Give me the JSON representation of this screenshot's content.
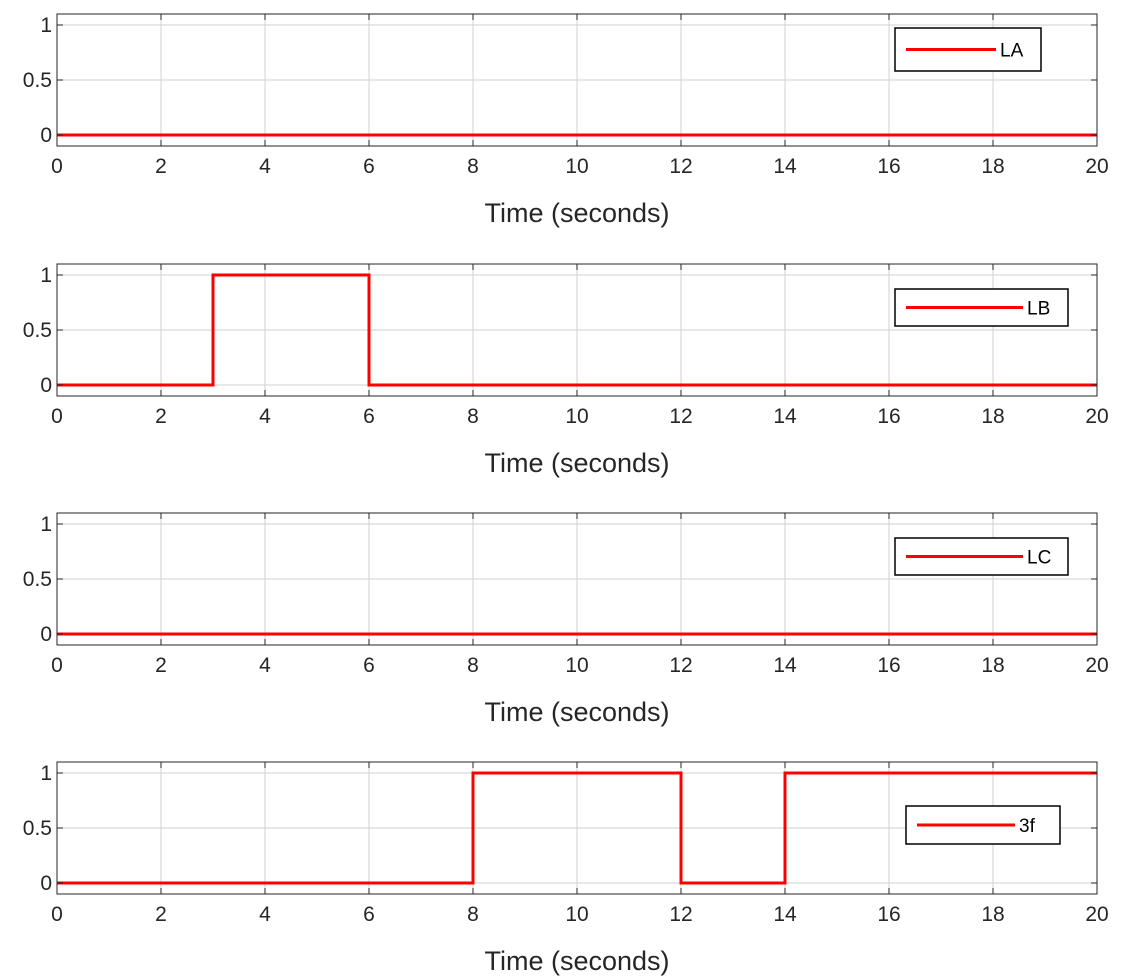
{
  "colors": {
    "series": "#ff0000",
    "axis": "#262626",
    "grid": "#d0d0d0",
    "background": "#ffffff"
  },
  "chart_data": [
    {
      "type": "line",
      "step": true,
      "xlabel": "Time (seconds)",
      "ylabel": "",
      "xlim": [
        0,
        20
      ],
      "ylim": [
        -0.1,
        1.1
      ],
      "xticks": [
        0,
        2,
        4,
        6,
        8,
        10,
        12,
        14,
        16,
        18,
        20
      ],
      "yticks": [
        0,
        0.5,
        1
      ],
      "ytick_labels": [
        "0",
        "0.5",
        "1"
      ],
      "grid": true,
      "legend_position": "top-right",
      "series": [
        {
          "name": "LA",
          "color": "#ff0000",
          "x": [
            0,
            20
          ],
          "y": [
            0,
            0
          ]
        }
      ]
    },
    {
      "type": "line",
      "step": true,
      "xlabel": "Time (seconds)",
      "ylabel": "",
      "xlim": [
        0,
        20
      ],
      "ylim": [
        -0.1,
        1.1
      ],
      "xticks": [
        0,
        2,
        4,
        6,
        8,
        10,
        12,
        14,
        16,
        18,
        20
      ],
      "yticks": [
        0,
        0.5,
        1
      ],
      "ytick_labels": [
        "0",
        "0.5",
        "1"
      ],
      "grid": true,
      "legend_position": "top-right",
      "series": [
        {
          "name": "LB",
          "color": "#ff0000",
          "x": [
            0,
            3,
            3,
            6,
            6,
            20
          ],
          "y": [
            0,
            0,
            1,
            1,
            0,
            0
          ]
        }
      ]
    },
    {
      "type": "line",
      "step": true,
      "xlabel": "Time (seconds)",
      "ylabel": "",
      "xlim": [
        0,
        20
      ],
      "ylim": [
        -0.1,
        1.1
      ],
      "xticks": [
        0,
        2,
        4,
        6,
        8,
        10,
        12,
        14,
        16,
        18,
        20
      ],
      "yticks": [
        0,
        0.5,
        1
      ],
      "ytick_labels": [
        "0",
        "0.5",
        "1"
      ],
      "grid": true,
      "legend_position": "top-right",
      "series": [
        {
          "name": "LC",
          "color": "#ff0000",
          "x": [
            0,
            20
          ],
          "y": [
            0,
            0
          ]
        }
      ]
    },
    {
      "type": "line",
      "step": true,
      "xlabel": "Time (seconds)",
      "ylabel": "",
      "xlim": [
        0,
        20
      ],
      "ylim": [
        -0.1,
        1.1
      ],
      "xticks": [
        0,
        2,
        4,
        6,
        8,
        10,
        12,
        14,
        16,
        18,
        20
      ],
      "yticks": [
        0,
        0.5,
        1
      ],
      "ytick_labels": [
        "0",
        "0.5",
        "1"
      ],
      "grid": true,
      "legend_position": "right",
      "series": [
        {
          "name": "3f",
          "color": "#ff0000",
          "x": [
            0,
            8,
            8,
            12,
            12,
            14,
            14,
            20
          ],
          "y": [
            0,
            0,
            1,
            1,
            0,
            0,
            1,
            1
          ]
        }
      ]
    }
  ]
}
